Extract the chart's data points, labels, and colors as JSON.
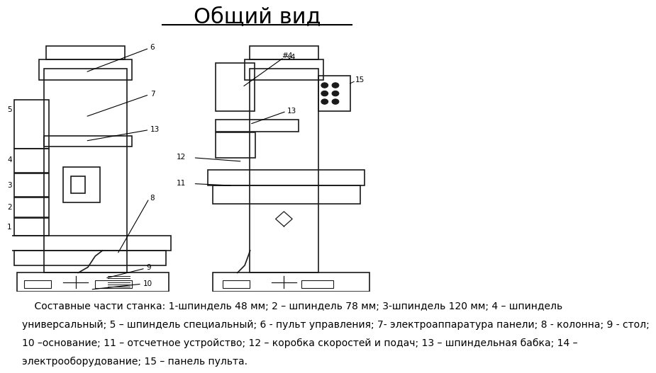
{
  "title": "Общий вид",
  "background_color": "#ffffff",
  "title_fontsize": 22,
  "description": "    Составные части станка: 1-шпиндель 48 мм; 2 – шпиндель 78 мм; 3-шпиндель 120 мм; 4 – шпиндель универсальный; 5 – шпиндель специальный; 6 - пульт управления; 7- электроаппаратура панели; 8 - колонна; 9 - стол;\n10 –основание; 11 – отсчетное устройство; 12 – коробка скоростей и подач; 13 – шпиндельная бабка; 14 –\nэлектрооборудование; 15 – панель пульта.",
  "desc_fontsize": 10.0,
  "lc": "#1a1a1a",
  "lw": 1.2,
  "fontsize_label": 7.5
}
